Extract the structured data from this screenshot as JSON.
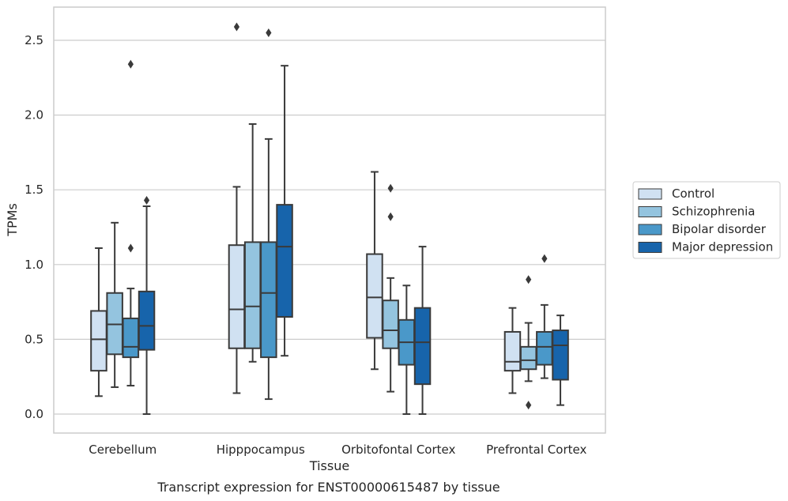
{
  "chart_data": {
    "type": "boxplot",
    "caption": "Transcript expression for ENST00000615487 by tissue",
    "xlabel": "Tissue",
    "ylabel": "TPMs",
    "ylim": [
      -0.12,
      2.72
    ],
    "yticks": [
      "0.0",
      "0.5",
      "1.0",
      "1.5",
      "2.0",
      "2.5"
    ],
    "categories": [
      "Cerebellum",
      "Hipppocampus",
      "Orbitofontal Cortex",
      "Prefrontal Cortex"
    ],
    "grid": "horizontal",
    "legend_position": "right",
    "series": [
      {
        "name": "Control",
        "color": "#d0e1f2",
        "boxes": [
          {
            "whislo": 0.12,
            "q1": 0.29,
            "med": 0.5,
            "q3": 0.69,
            "whishi": 1.11,
            "fliers": []
          },
          {
            "whislo": 0.14,
            "q1": 0.44,
            "med": 0.7,
            "q3": 1.13,
            "whishi": 1.52,
            "fliers": [
              2.59
            ]
          },
          {
            "whislo": 0.3,
            "q1": 0.51,
            "med": 0.78,
            "q3": 1.07,
            "whishi": 1.62,
            "fliers": []
          },
          {
            "whislo": 0.14,
            "q1": 0.29,
            "med": 0.35,
            "q3": 0.55,
            "whishi": 0.71,
            "fliers": []
          }
        ]
      },
      {
        "name": "Schizophrenia",
        "color": "#94c4df",
        "boxes": [
          {
            "whislo": 0.18,
            "q1": 0.4,
            "med": 0.6,
            "q3": 0.81,
            "whishi": 1.28,
            "fliers": []
          },
          {
            "whislo": 0.35,
            "q1": 0.44,
            "med": 0.72,
            "q3": 1.15,
            "whishi": 1.94,
            "fliers": []
          },
          {
            "whislo": 0.15,
            "q1": 0.44,
            "med": 0.56,
            "q3": 0.76,
            "whishi": 0.91,
            "fliers": [
              1.51,
              1.32
            ]
          },
          {
            "whislo": 0.22,
            "q1": 0.3,
            "med": 0.36,
            "q3": 0.45,
            "whishi": 0.61,
            "fliers": [
              0.9,
              0.06
            ]
          }
        ]
      },
      {
        "name": "Bipolar disorder",
        "color": "#4a98c9",
        "boxes": [
          {
            "whislo": 0.19,
            "q1": 0.38,
            "med": 0.45,
            "q3": 0.64,
            "whishi": 0.84,
            "fliers": [
              2.34,
              1.11
            ]
          },
          {
            "whislo": 0.1,
            "q1": 0.38,
            "med": 0.81,
            "q3": 1.15,
            "whishi": 1.84,
            "fliers": [
              2.55
            ]
          },
          {
            "whislo": 0.0,
            "q1": 0.33,
            "med": 0.48,
            "q3": 0.63,
            "whishi": 0.86,
            "fliers": []
          },
          {
            "whislo": 0.24,
            "q1": 0.33,
            "med": 0.45,
            "q3": 0.55,
            "whishi": 0.73,
            "fliers": [
              1.04
            ]
          }
        ]
      },
      {
        "name": "Major depression",
        "color": "#1764ab",
        "boxes": [
          {
            "whislo": 0.0,
            "q1": 0.43,
            "med": 0.59,
            "q3": 0.82,
            "whishi": 1.39,
            "fliers": [
              1.43
            ]
          },
          {
            "whislo": 0.39,
            "q1": 0.65,
            "med": 1.12,
            "q3": 1.4,
            "whishi": 2.33,
            "fliers": []
          },
          {
            "whislo": 0.0,
            "q1": 0.2,
            "med": 0.48,
            "q3": 0.71,
            "whishi": 1.12,
            "fliers": []
          },
          {
            "whislo": 0.06,
            "q1": 0.23,
            "med": 0.46,
            "q3": 0.56,
            "whishi": 0.66,
            "fliers": []
          }
        ]
      }
    ]
  }
}
